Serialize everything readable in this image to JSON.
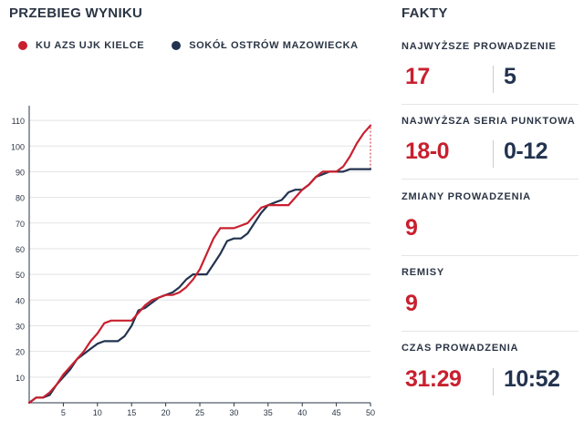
{
  "chart_title": "PRZEBIEG WYNIKU",
  "facts_title": "FAKTY",
  "legend": [
    {
      "name": "KU AZS UJK KIELCE",
      "color": "#c8202f"
    },
    {
      "name": "SOKÓŁ OSTRÓW MAZOWIECKA",
      "color": "#23334f"
    }
  ],
  "facts": [
    {
      "label": "NAJWYŻSZE PROWADZENIE",
      "home": "17",
      "away": "5"
    },
    {
      "label": "NAJWYŻSZA SERIA PUNKTOWA",
      "home": "18-0",
      "away": "0-12"
    },
    {
      "label": "ZMIANY PROWADZENIA",
      "home": "9"
    },
    {
      "label": "REMISY",
      "home": "9"
    },
    {
      "label": "CZAS PROWADZENIA",
      "home": "31:29",
      "away": "10:52"
    }
  ],
  "chart_data": {
    "type": "line",
    "xlabel": "",
    "ylabel": "",
    "xlim": [
      0,
      50
    ],
    "ylim": [
      0,
      115
    ],
    "x_ticks": [
      5,
      10,
      15,
      20,
      25,
      30,
      35,
      40,
      45,
      50
    ],
    "y_ticks": [
      10,
      20,
      30,
      40,
      50,
      60,
      70,
      80,
      90,
      100,
      110
    ],
    "grid": true,
    "series": [
      {
        "name": "KU AZS UJK KIELCE",
        "color": "#c8202f",
        "points": [
          [
            0,
            0
          ],
          [
            1,
            2
          ],
          [
            2,
            2
          ],
          [
            3,
            4
          ],
          [
            4,
            7
          ],
          [
            5,
            11
          ],
          [
            6,
            14
          ],
          [
            7,
            17
          ],
          [
            8,
            20
          ],
          [
            9,
            24
          ],
          [
            10,
            27
          ],
          [
            11,
            31
          ],
          [
            12,
            32
          ],
          [
            13,
            32
          ],
          [
            14,
            32
          ],
          [
            15,
            32
          ],
          [
            16,
            35
          ],
          [
            17,
            38
          ],
          [
            18,
            40
          ],
          [
            19,
            41
          ],
          [
            20,
            42
          ],
          [
            21,
            42
          ],
          [
            22,
            43
          ],
          [
            23,
            45
          ],
          [
            24,
            48
          ],
          [
            25,
            52
          ],
          [
            26,
            58
          ],
          [
            27,
            64
          ],
          [
            28,
            68
          ],
          [
            29,
            68
          ],
          [
            30,
            68
          ],
          [
            31,
            69
          ],
          [
            32,
            70
          ],
          [
            33,
            73
          ],
          [
            34,
            76
          ],
          [
            35,
            77
          ],
          [
            36,
            77
          ],
          [
            37,
            77
          ],
          [
            38,
            77
          ],
          [
            39,
            80
          ],
          [
            40,
            83
          ],
          [
            41,
            85
          ],
          [
            42,
            88
          ],
          [
            43,
            90
          ],
          [
            44,
            90
          ],
          [
            45,
            90
          ],
          [
            46,
            92
          ],
          [
            47,
            96
          ],
          [
            48,
            101
          ],
          [
            49,
            105
          ],
          [
            50,
            108
          ]
        ]
      },
      {
        "name": "SOKÓŁ OSTRÓW MAZOWIECKA",
        "color": "#23334f",
        "points": [
          [
            0,
            0
          ],
          [
            1,
            2
          ],
          [
            2,
            2
          ],
          [
            3,
            3
          ],
          [
            4,
            7
          ],
          [
            5,
            10
          ],
          [
            6,
            13
          ],
          [
            7,
            17
          ],
          [
            8,
            19
          ],
          [
            9,
            21
          ],
          [
            10,
            23
          ],
          [
            11,
            24
          ],
          [
            12,
            24
          ],
          [
            13,
            24
          ],
          [
            14,
            26
          ],
          [
            15,
            30
          ],
          [
            16,
            36
          ],
          [
            17,
            37
          ],
          [
            18,
            39
          ],
          [
            19,
            41
          ],
          [
            20,
            42
          ],
          [
            21,
            43
          ],
          [
            22,
            45
          ],
          [
            23,
            48
          ],
          [
            24,
            50
          ],
          [
            25,
            50
          ],
          [
            26,
            50
          ],
          [
            27,
            54
          ],
          [
            28,
            58
          ],
          [
            29,
            63
          ],
          [
            30,
            64
          ],
          [
            31,
            64
          ],
          [
            32,
            66
          ],
          [
            33,
            70
          ],
          [
            34,
            74
          ],
          [
            35,
            77
          ],
          [
            36,
            78
          ],
          [
            37,
            79
          ],
          [
            38,
            82
          ],
          [
            39,
            83
          ],
          [
            40,
            83
          ],
          [
            41,
            85
          ],
          [
            42,
            88
          ],
          [
            43,
            89
          ],
          [
            44,
            90
          ],
          [
            45,
            90
          ],
          [
            46,
            90
          ],
          [
            47,
            91
          ],
          [
            48,
            91
          ],
          [
            49,
            91
          ],
          [
            50,
            91
          ]
        ]
      }
    ],
    "annotations": [
      {
        "type": "difference-line",
        "x": 50,
        "y_from": 91,
        "y_to": 108,
        "color": "#c8202f",
        "style": "dotted"
      }
    ]
  }
}
